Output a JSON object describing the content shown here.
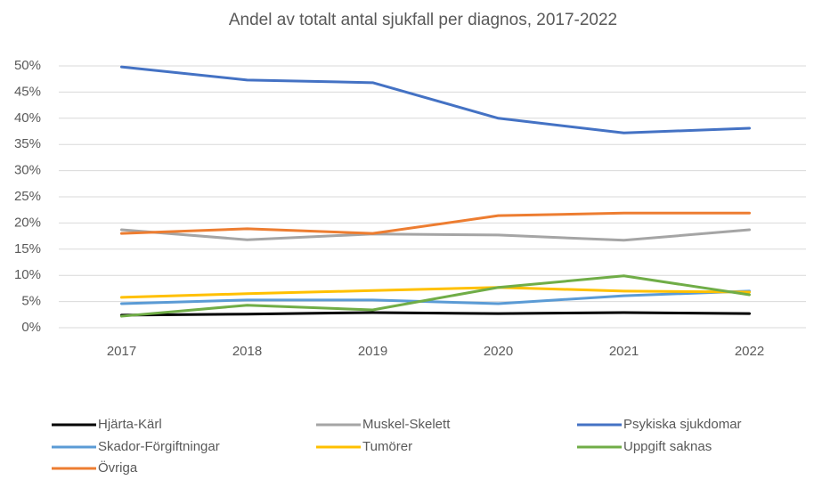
{
  "chart_data": {
    "type": "line",
    "title": "Andel av totalt antal sjukfall per diagnos, 2017-2022",
    "categories": [
      "2017",
      "2018",
      "2019",
      "2020",
      "2021",
      "2022"
    ],
    "series": [
      {
        "name": "Hjärta-Kärl",
        "color": "#000000",
        "values": [
          2.4,
          2.6,
          2.9,
          2.7,
          2.9,
          2.7
        ]
      },
      {
        "name": "Muskel-Skelett",
        "color": "#a5a5a5",
        "values": [
          18.7,
          16.8,
          17.9,
          17.7,
          16.7,
          18.7
        ]
      },
      {
        "name": "Psykiska sjukdomar",
        "color": "#4472c4",
        "values": [
          49.8,
          47.3,
          46.8,
          40.0,
          37.2,
          38.1
        ]
      },
      {
        "name": "Skador-Förgiftningar",
        "color": "#5b9bd5",
        "values": [
          4.6,
          5.3,
          5.3,
          4.6,
          6.1,
          7.0
        ]
      },
      {
        "name": "Tumörer",
        "color": "#ffc000",
        "values": [
          5.8,
          6.5,
          7.1,
          7.7,
          7.0,
          6.8
        ]
      },
      {
        "name": "Uppgift saknas",
        "color": "#70ad47",
        "values": [
          2.2,
          4.3,
          3.4,
          7.7,
          9.9,
          6.3
        ]
      },
      {
        "name": "Övriga",
        "color": "#ed7d31",
        "values": [
          18.0,
          18.9,
          18.0,
          21.4,
          21.9,
          21.9
        ]
      }
    ],
    "ylim": [
      0,
      50
    ],
    "yticks": [
      {
        "value": 0,
        "label": "0%"
      },
      {
        "value": 5,
        "label": "5%"
      },
      {
        "value": 10,
        "label": "10%"
      },
      {
        "value": 15,
        "label": "15%"
      },
      {
        "value": 20,
        "label": "20%"
      },
      {
        "value": 25,
        "label": "25%"
      },
      {
        "value": 30,
        "label": "30%"
      },
      {
        "value": 35,
        "label": "35%"
      },
      {
        "value": 40,
        "label": "40%"
      },
      {
        "value": 45,
        "label": "45%"
      },
      {
        "value": 50,
        "label": "50%"
      }
    ],
    "grid": true,
    "legend": "bottom"
  }
}
